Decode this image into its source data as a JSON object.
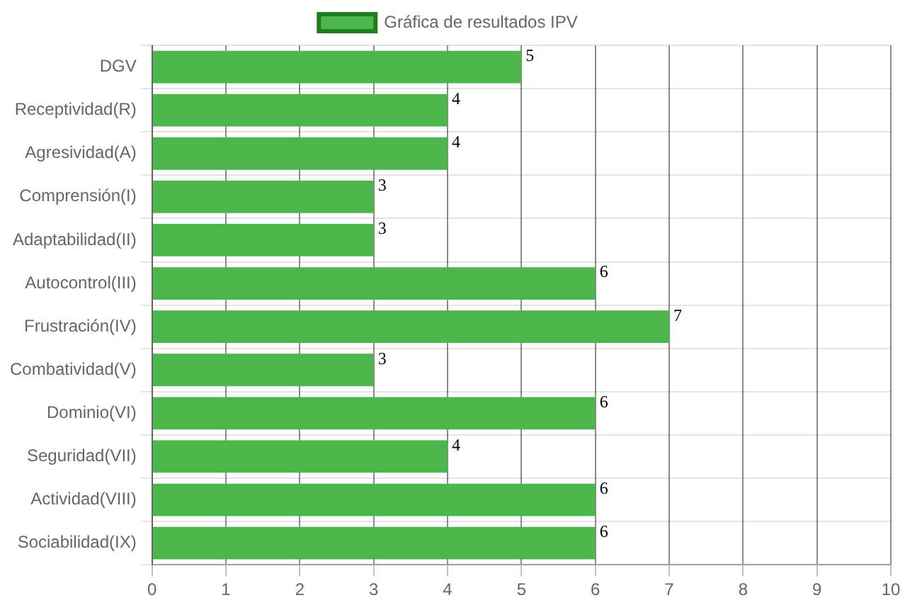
{
  "chart_data": {
    "type": "bar",
    "orientation": "horizontal",
    "categories": [
      "DGV",
      "Receptividad(R)",
      "Agresividad(A)",
      "Comprensión(I)",
      "Adaptabilidad(II)",
      "Autocontrol(III)",
      "Frustración(IV)",
      "Combatividad(V)",
      "Dominio(VI)",
      "Seguridad(VII)",
      "Actividad(VIII)",
      "Sociabilidad(IX)"
    ],
    "series": [
      {
        "name": "Gráfica de resultados IPV",
        "color": "#4cb54c",
        "values": [
          5,
          4,
          4,
          3,
          3,
          6,
          7,
          3,
          6,
          4,
          6,
          6
        ]
      }
    ],
    "xlim": [
      0,
      10
    ],
    "xticks": [
      0,
      1,
      2,
      3,
      4,
      5,
      6,
      7,
      8,
      9,
      10
    ],
    "grid": true,
    "legend": "top",
    "data_labels": true
  }
}
